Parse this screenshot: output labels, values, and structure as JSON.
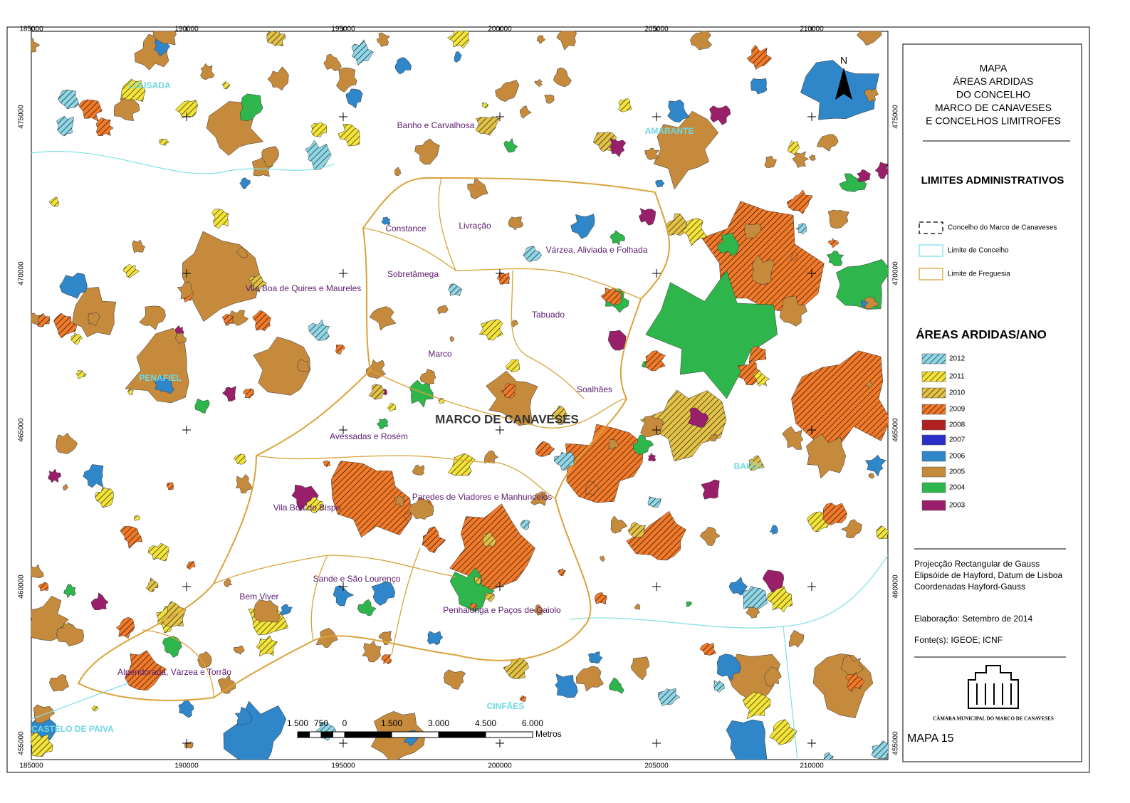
{
  "header": {
    "title_lines": [
      "MAPA",
      "ÁREAS ARDIDAS",
      "DO CONCELHO",
      "MARCO DE CANAVESES",
      "E CONCELHOS LIMITROFES"
    ],
    "map_number": "MAPA 15"
  },
  "grid": {
    "x_labels": [
      "185000",
      "190000",
      "195000",
      "200000",
      "205000",
      "210000"
    ],
    "y_labels": [
      "475000",
      "470000",
      "465000",
      "460000",
      "455000"
    ]
  },
  "north": "N",
  "concelhos": [
    {
      "label": "LOUSADA"
    },
    {
      "label": "AMARANTE"
    },
    {
      "label": "PENAFIEL"
    },
    {
      "label": "BAIÃO"
    },
    {
      "label": "CINFÃES"
    },
    {
      "label": "CASTELO DE PAIVA"
    }
  ],
  "main_label": "MARCO DE CANAVESES",
  "freguesias": [
    {
      "label": "Banho e Carvalhosa"
    },
    {
      "label": "Constance"
    },
    {
      "label": "Livração"
    },
    {
      "label": "Várzea, Aliviada e Folhada"
    },
    {
      "label": "Sobretâmega"
    },
    {
      "label": "Vila Boa de Quires e Maureles"
    },
    {
      "label": "Tabuado"
    },
    {
      "label": "Marco"
    },
    {
      "label": "Soalhães"
    },
    {
      "label": "Avessadas e Rosém"
    },
    {
      "label": "Paredes de Viadores e Manhuncelos"
    },
    {
      "label": "Vila Boa do Bispo"
    },
    {
      "label": "Sande e São Lourenço"
    },
    {
      "label": "Bem Viver"
    },
    {
      "label": "Penhalonga e Paços de Gaiolo"
    },
    {
      "label": "Alpendorada, Várzea e Torrão"
    }
  ],
  "scale_bar": {
    "labels": [
      "1.500",
      "750",
      "0",
      "1.500",
      "3.000",
      "4.500",
      "6.000"
    ],
    "unit": "Metros"
  },
  "legend_limits": {
    "title": "LIMITES ADMINISTRATIVOS",
    "items": [
      {
        "label": "Concelho do Marco de Canaveses"
      },
      {
        "label": "Limite de Concelho"
      },
      {
        "label": "Limite de Freguesia"
      }
    ]
  },
  "legend_years": {
    "title": "ÁREAS ARDIDAS/ANO",
    "items": [
      {
        "label": "2012",
        "color": "#8fd6e6"
      },
      {
        "label": "2011",
        "color": "#f3e33a"
      },
      {
        "label": "2010",
        "color": "#e3c248"
      },
      {
        "label": "2009",
        "color": "#f07a2a"
      },
      {
        "label": "2008",
        "color": "#b02020"
      },
      {
        "label": "2007",
        "color": "#2a2fc8"
      },
      {
        "label": "2006",
        "color": "#2f86c8"
      },
      {
        "label": "2005",
        "color": "#c58a3c"
      },
      {
        "label": "2004",
        "color": "#2eb64c"
      },
      {
        "label": "2003",
        "color": "#9a1f6a"
      }
    ]
  },
  "info": {
    "projection": [
      "Projecção Rectangular de Gauss",
      "Elipsóide de Hayford, Datum de Lisboa",
      "Coordenadas Hayford-Gauss"
    ],
    "date": "Elaboração: Setembro de 2014",
    "source": "Fonte(s): IGEOE; ICNF",
    "logo_text": "CÂMARA MUNICIPAL DO MARCO DE CANAVESES"
  }
}
